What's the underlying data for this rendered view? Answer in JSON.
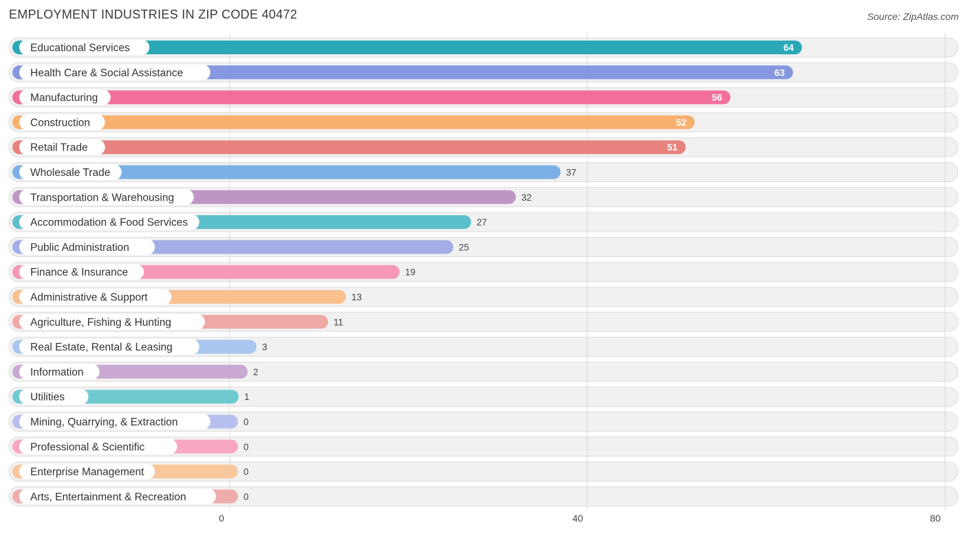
{
  "header": {
    "title": "EMPLOYMENT INDUSTRIES IN ZIP CODE 40472",
    "source": "Source: ZipAtlas.com"
  },
  "chart_data": {
    "type": "bar",
    "orientation": "horizontal",
    "title": "EMPLOYMENT INDUSTRIES IN ZIP CODE 40472",
    "xlim": [
      0,
      80
    ],
    "ticks": [
      0,
      40,
      80
    ],
    "grid": true,
    "categories": [
      "Educational Services",
      "Health Care & Social Assistance",
      "Manufacturing",
      "Construction",
      "Retail Trade",
      "Wholesale Trade",
      "Transportation & Warehousing",
      "Accommodation & Food Services",
      "Public Administration",
      "Finance & Insurance",
      "Administrative & Support",
      "Agriculture, Fishing & Hunting",
      "Real Estate, Rental & Leasing",
      "Information",
      "Utilities",
      "Mining, Quarrying, & Extraction",
      "Professional & Scientific",
      "Enterprise Management",
      "Arts, Entertainment & Recreation"
    ],
    "values": [
      64,
      63,
      56,
      52,
      51,
      37,
      32,
      27,
      25,
      19,
      13,
      11,
      3,
      2,
      1,
      0,
      0,
      0,
      0
    ],
    "colors": [
      "#2aa8b7",
      "#8497e0",
      "#f26f9b",
      "#f8b06f",
      "#e8827e",
      "#7ab0e6",
      "#bd96c4",
      "#5cbfcc",
      "#a3aee6",
      "#f597b6",
      "#f8c08f",
      "#eea9a5",
      "#a8c6ee",
      "#c9a9d1",
      "#6fcad0",
      "#b7bfee",
      "#f7a7c2",
      "#f9c79c",
      "#eeadab"
    ]
  }
}
